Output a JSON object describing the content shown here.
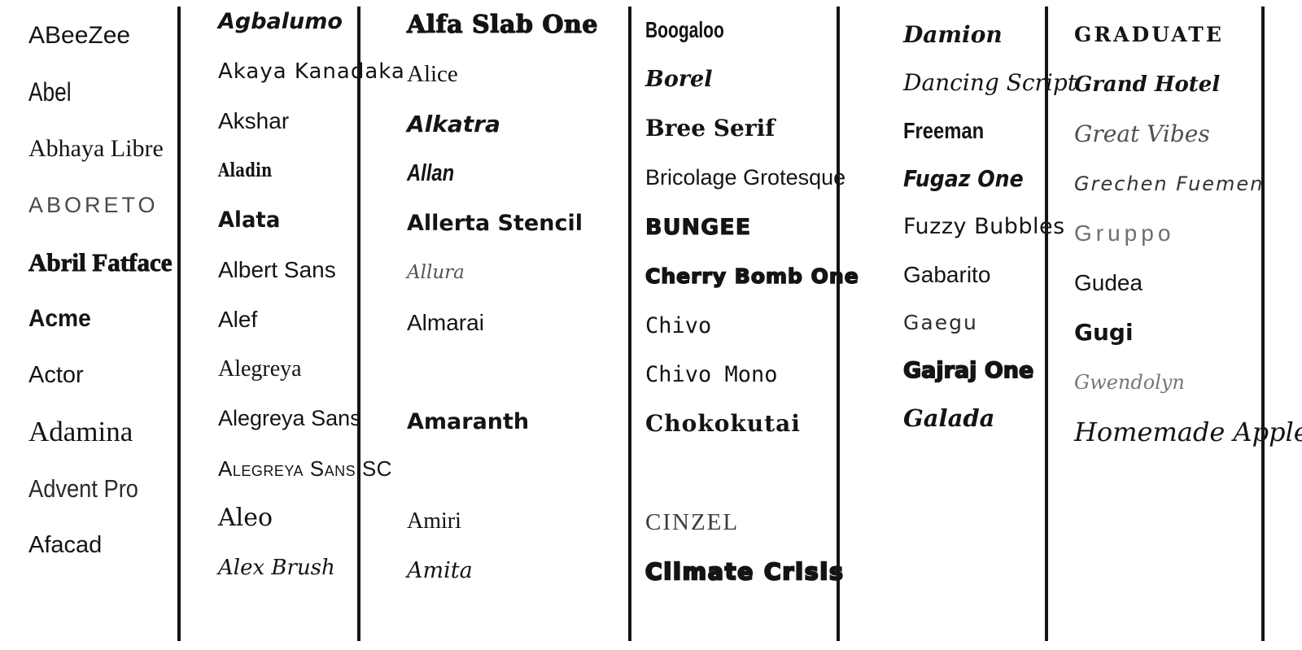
{
  "page": {
    "background_color": "#ffffff",
    "divider_color": "#141414",
    "text_color": "#141414",
    "muted_text_color": "#6e6e6e",
    "divider_count": 6
  },
  "columns": [
    {
      "items": [
        {
          "label": "ABeeZee"
        },
        {
          "label": "Abel"
        },
        {
          "label": "Abhaya Libre"
        },
        {
          "label": "ABORETO"
        },
        {
          "label": "Abril Fatface"
        },
        {
          "label": "Acme"
        },
        {
          "label": "Actor"
        },
        {
          "label": "Adamina"
        },
        {
          "label": "Advent Pro"
        },
        {
          "label": "Afacad"
        }
      ]
    },
    {
      "items": [
        {
          "label": "Agbalumo"
        },
        {
          "label": "Akaya Kanadaka"
        },
        {
          "label": "Akshar"
        },
        {
          "label": "Aladin"
        },
        {
          "label": "Alata"
        },
        {
          "label": "Albert Sans"
        },
        {
          "label": "Alef"
        },
        {
          "label": "Alegreya"
        },
        {
          "label": "Alegreya Sans"
        },
        {
          "label": "Alegreya Sans SC"
        },
        {
          "label": "Aleo"
        },
        {
          "label": "Alex Brush"
        }
      ]
    },
    {
      "items": [
        {
          "label": "Alfa Slab One"
        },
        {
          "label": "Alice"
        },
        {
          "label": "Alkatra"
        },
        {
          "label": "Allan"
        },
        {
          "label": "Allerta Stencil"
        },
        {
          "label": "Allura"
        },
        {
          "label": "Almarai"
        },
        {
          "label": ""
        },
        {
          "label": "Amaranth"
        },
        {
          "label": ""
        },
        {
          "label": "Amiri"
        },
        {
          "label": "Amita"
        }
      ]
    },
    {
      "items": [
        {
          "label": "Boogaloo"
        },
        {
          "label": "Borel"
        },
        {
          "label": "Bree Serif"
        },
        {
          "label": "Bricolage Grotesque"
        },
        {
          "label": "BUNGEE"
        },
        {
          "label": "Cherry Bomb One"
        },
        {
          "label": "Chivo"
        },
        {
          "label": "Chivo Mono"
        },
        {
          "label": "Chokokutai"
        },
        {
          "label": ""
        },
        {
          "label": "CINZEL"
        },
        {
          "label": "Climate Crisis"
        }
      ]
    },
    {
      "items": [
        {
          "label": "Damion"
        },
        {
          "label": "Dancing Script"
        },
        {
          "label": "Freeman"
        },
        {
          "label": "Fugaz One"
        },
        {
          "label": "Fuzzy Bubbles"
        },
        {
          "label": "Gabarito"
        },
        {
          "label": "Gaegu"
        },
        {
          "label": "Gajraj One"
        },
        {
          "label": "Galada"
        }
      ]
    },
    {
      "items": [
        {
          "label": "GRADUATE"
        },
        {
          "label": "Grand Hotel"
        },
        {
          "label": "Great Vibes"
        },
        {
          "label": "Grechen Fuemen"
        },
        {
          "label": "Gruppo"
        },
        {
          "label": "Gudea"
        },
        {
          "label": "Gugi"
        },
        {
          "label": "Gwendolyn"
        },
        {
          "label": "Homemade Apple"
        }
      ]
    }
  ]
}
